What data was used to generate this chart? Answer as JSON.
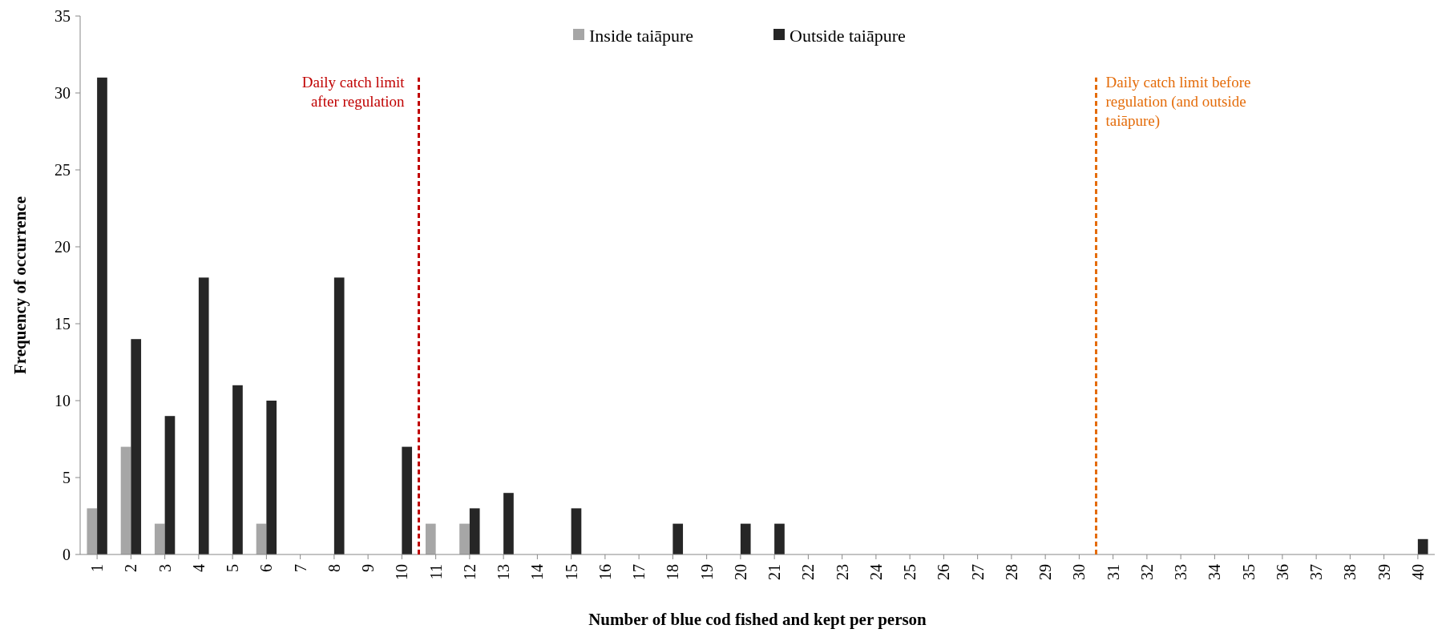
{
  "chart_data": {
    "type": "bar",
    "xlabel": "Number of blue cod fished and kept per person",
    "ylabel": "Frequency of occurrence",
    "x": [
      1,
      2,
      3,
      4,
      5,
      6,
      7,
      8,
      9,
      10,
      11,
      12,
      13,
      14,
      15,
      16,
      17,
      18,
      19,
      20,
      21,
      22,
      23,
      24,
      25,
      26,
      27,
      28,
      29,
      30,
      31,
      32,
      33,
      34,
      35,
      36,
      37,
      38,
      39,
      40
    ],
    "series": [
      {
        "name": "Inside taiāpure",
        "color": "#a6a6a6",
        "values": [
          3,
          7,
          2,
          0,
          0,
          2,
          0,
          0,
          0,
          0,
          2,
          2,
          0,
          0,
          0,
          0,
          0,
          0,
          0,
          0,
          0,
          0,
          0,
          0,
          0,
          0,
          0,
          0,
          0,
          0,
          0,
          0,
          0,
          0,
          0,
          0,
          0,
          0,
          0,
          0
        ]
      },
      {
        "name": "Outside taiāpure",
        "color": "#262626",
        "values": [
          31,
          14,
          9,
          18,
          11,
          10,
          0,
          18,
          0,
          7,
          0,
          3,
          4,
          0,
          3,
          0,
          0,
          2,
          0,
          2,
          2,
          0,
          0,
          0,
          0,
          0,
          0,
          0,
          0,
          0,
          0,
          0,
          0,
          0,
          0,
          0,
          0,
          0,
          0,
          1
        ]
      }
    ],
    "xlim": [
      0.5,
      40.5
    ],
    "xticks": [
      1,
      2,
      3,
      4,
      5,
      6,
      7,
      8,
      9,
      10,
      11,
      12,
      13,
      14,
      15,
      16,
      17,
      18,
      19,
      20,
      21,
      22,
      23,
      24,
      25,
      26,
      27,
      28,
      29,
      30,
      31,
      32,
      33,
      34,
      35,
      36,
      37,
      38,
      39,
      40
    ],
    "ylim": [
      0,
      35
    ],
    "yticks": [
      0,
      5,
      10,
      15,
      20,
      25,
      30,
      35
    ],
    "ref_lines": [
      {
        "axis": "x",
        "value": 10.5,
        "label": "Daily catch limit after regulation",
        "color": "#c00000",
        "line_style": "dashed"
      },
      {
        "axis": "x",
        "value": 30.5,
        "label": "Daily catch limit before regulation (and outside taiāpure)",
        "color": "#e46c0a",
        "line_style": "dashed"
      }
    ],
    "grid": false,
    "legend": "top"
  }
}
